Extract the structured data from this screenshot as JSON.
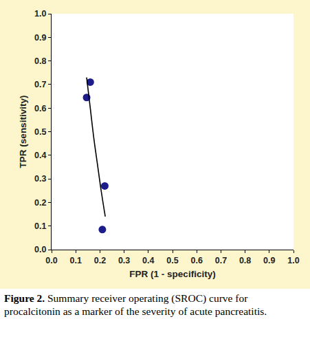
{
  "chart_data": {
    "type": "scatter",
    "x_label": "FPR (1 - specificity)",
    "y_label": "TPR (sensitivity)",
    "caption_label": "Figure 2.",
    "caption": "Summary receiver operating (SROC) curve for procalcitonin as a marker of the severity of acute pancreatitis.",
    "xlim": [
      0,
      1
    ],
    "ylim": [
      0,
      1
    ],
    "xticks": [
      {
        "value": 0,
        "label": "0.0"
      },
      0.1,
      0.2,
      0.3,
      0.4,
      0.5,
      0.6,
      0.7,
      0.8,
      0.9,
      {
        "value": 1,
        "label": "1.0"
      }
    ],
    "yticks": [
      {
        "value": 0,
        "label": "0.0"
      },
      0.1,
      0.2,
      0.3,
      0.4,
      0.5,
      0.6,
      0.7,
      0.8,
      0.9,
      {
        "value": 1,
        "label": "1.0"
      }
    ],
    "grid": false,
    "series": [
      {
        "type": "scatter",
        "marker": "circle",
        "color": "#1c1c8a",
        "x": [
          0.16,
          0.145,
          0.22,
          0.21
        ],
        "values": [
          0.71,
          0.645,
          0.27,
          0.085
        ]
      },
      {
        "type": "line",
        "line_style": "solid",
        "color": "#000000",
        "x": [
          0.145,
          0.16,
          0.175,
          0.19,
          0.205,
          0.222
        ],
        "values": [
          0.73,
          0.6,
          0.47,
          0.36,
          0.25,
          0.14
        ]
      }
    ]
  }
}
